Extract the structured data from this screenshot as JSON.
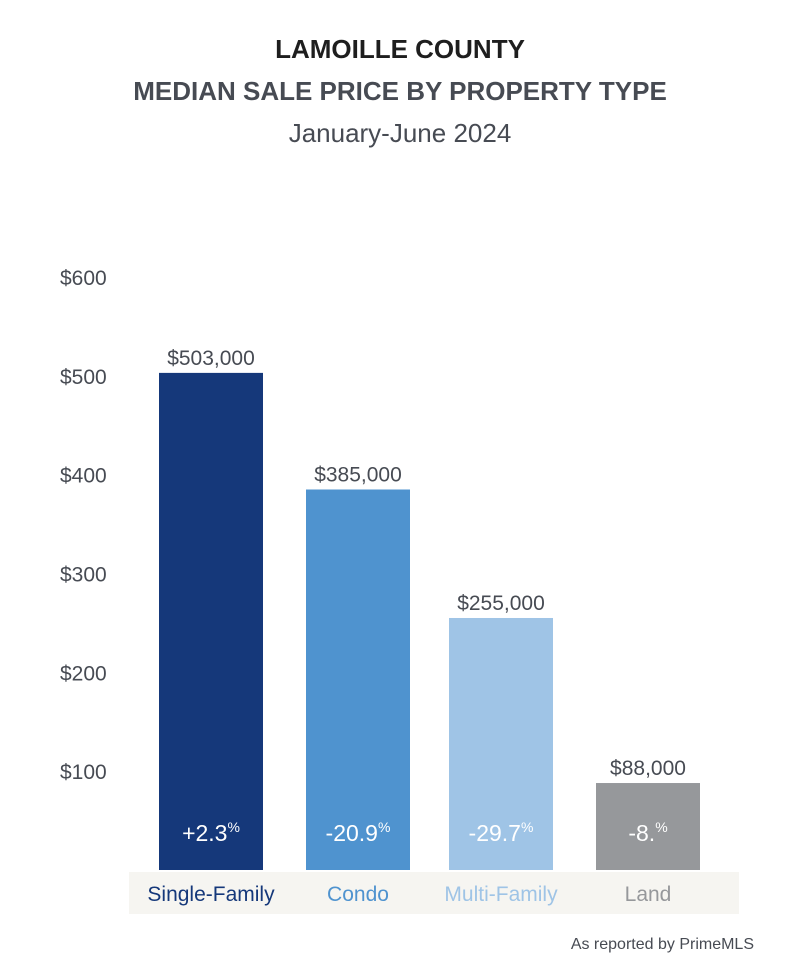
{
  "header": {
    "title": "LAMOILLE COUNTY",
    "subtitle": "MEDIAN SALE PRICE BY PROPERTY TYPE",
    "period": "January-June 2024"
  },
  "footer": {
    "source": "As reported by PrimeMLS"
  },
  "colors": {
    "single_family": "#15387a",
    "condo": "#4f93cf",
    "multi_family": "#9fc4e6",
    "land": "#96989b",
    "category_band": "#f6f5f1",
    "text": "#474b53"
  },
  "chart_data": {
    "type": "bar",
    "title": "MEDIAN SALE PRICE BY PROPERTY TYPE",
    "xlabel": "",
    "ylabel": "",
    "ylim": [
      0,
      600
    ],
    "y_ticks": [
      100,
      200,
      300,
      400,
      500,
      600
    ],
    "y_tick_labels": [
      "$100",
      "$200",
      "$300",
      "$400",
      "$500",
      "$600"
    ],
    "grid": false,
    "categories": [
      "Single-Family",
      "Condo",
      "Multi-Family",
      "Land"
    ],
    "values": [
      503,
      385,
      255,
      88
    ],
    "value_labels": [
      "$503,000",
      "$385,000",
      "$255,000",
      "$88,000"
    ],
    "change_values": [
      "+2.3",
      "-20.9",
      "-29.7",
      "-8."
    ],
    "change_unit": "%",
    "bar_colors": [
      "#15387a",
      "#4f93cf",
      "#9fc4e6",
      "#96989b"
    ],
    "category_label_colors": [
      "#15387a",
      "#4f93cf",
      "#9fc4e6",
      "#96989b"
    ]
  }
}
